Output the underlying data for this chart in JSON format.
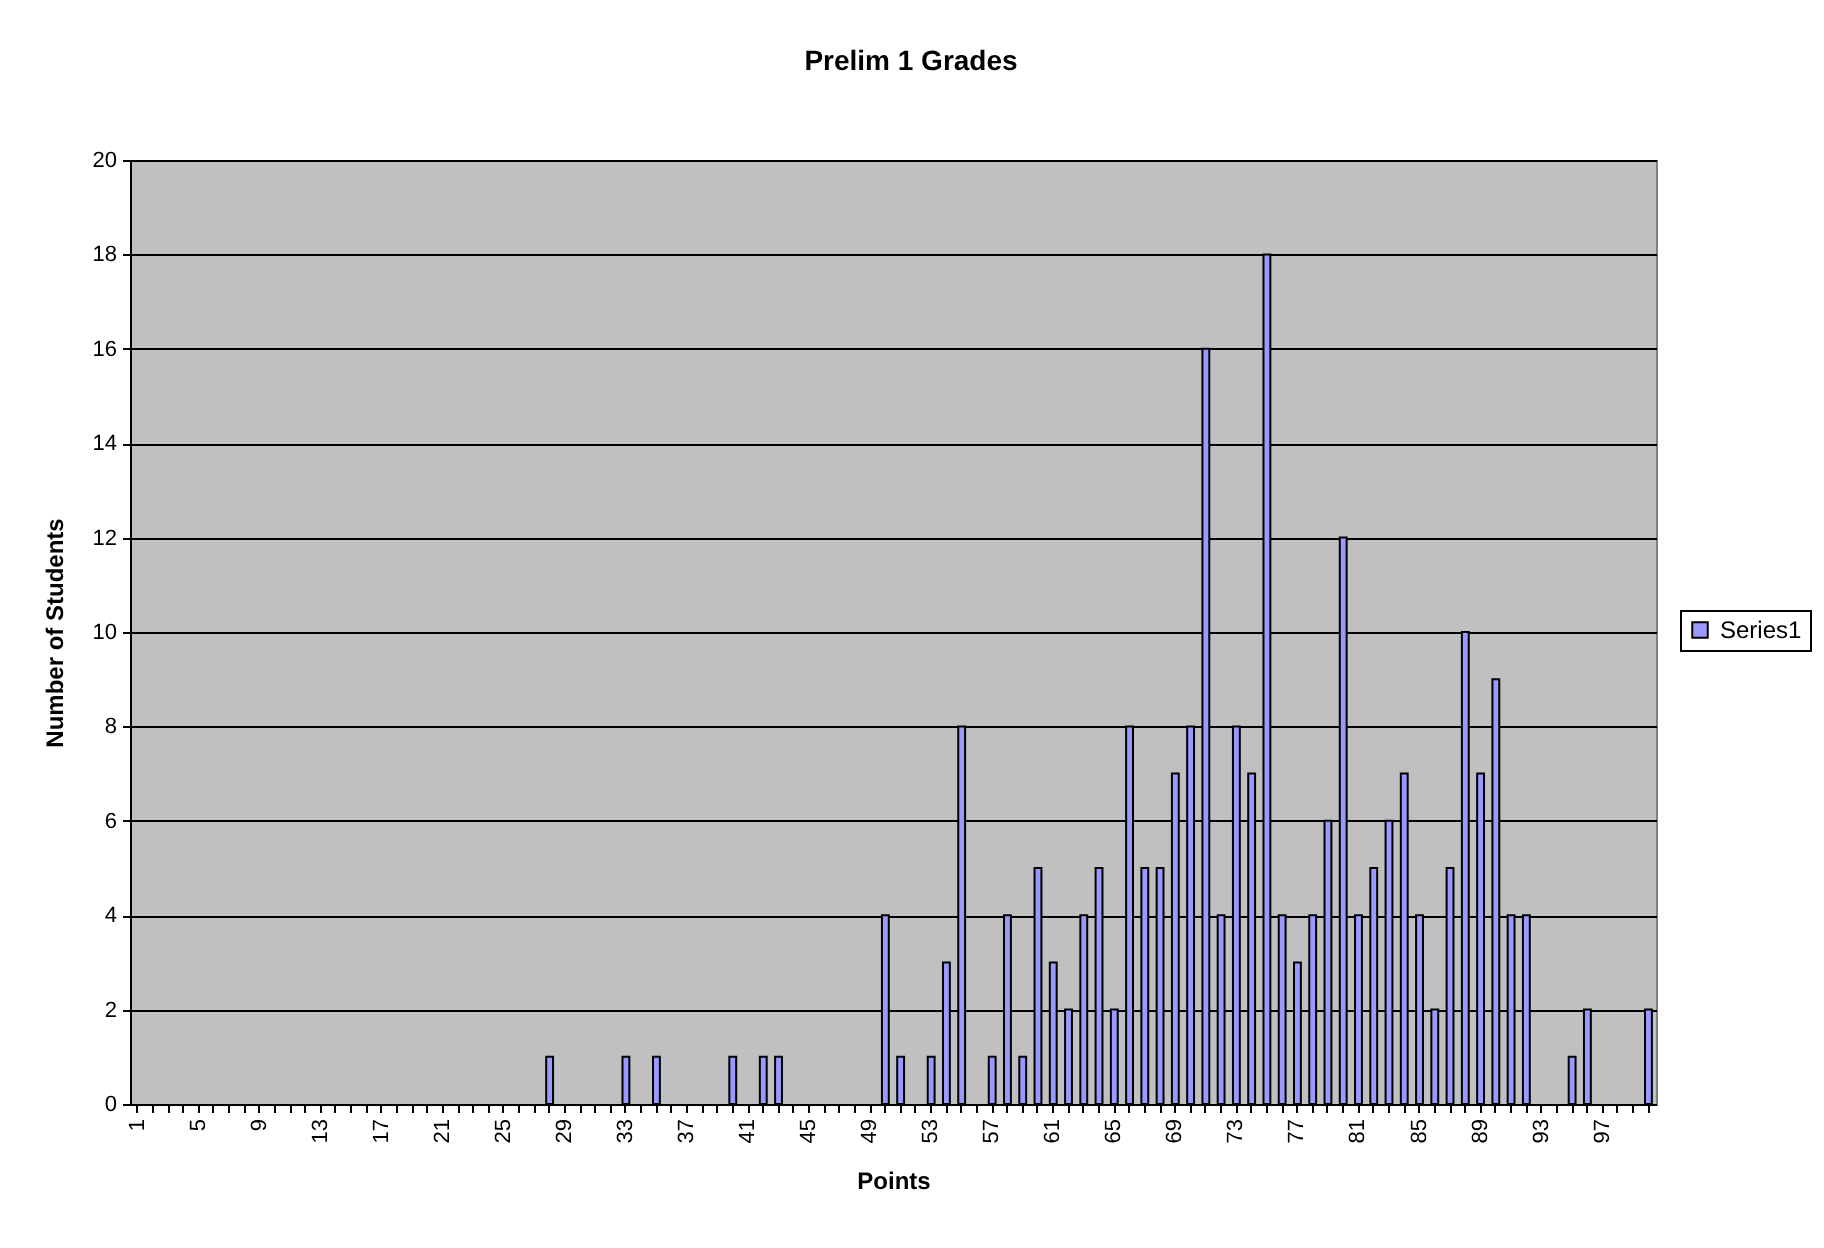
{
  "chart_data": {
    "type": "bar",
    "title": "Prelim 1 Grades",
    "xlabel": "Points",
    "ylabel": "Number of Students",
    "categories": [
      "1",
      null,
      null,
      null,
      "5",
      null,
      null,
      null,
      "9",
      null,
      null,
      null,
      "13",
      null,
      null,
      null,
      "17",
      null,
      null,
      null,
      "21",
      null,
      null,
      null,
      "25",
      null,
      null,
      null,
      "29",
      null,
      null,
      null,
      "33",
      null,
      null,
      null,
      "37",
      null,
      null,
      null,
      "41",
      null,
      null,
      null,
      "45",
      null,
      null,
      null,
      "49",
      null,
      null,
      null,
      "53",
      null,
      null,
      null,
      "57",
      null,
      null,
      null,
      "61",
      null,
      null,
      null,
      "65",
      null,
      null,
      null,
      "69",
      null,
      null,
      null,
      "73",
      null,
      null,
      null,
      "77",
      null,
      null,
      null,
      "81",
      null,
      null,
      null,
      "85",
      null,
      null,
      null,
      "89",
      null,
      null,
      null,
      "93",
      null,
      null,
      null,
      "97",
      null,
      null,
      null
    ],
    "series": [
      {
        "name": "Series1",
        "color": "#9999ff",
        "values": [
          null,
          null,
          null,
          null,
          null,
          null,
          null,
          null,
          null,
          null,
          null,
          null,
          null,
          null,
          null,
          null,
          null,
          null,
          null,
          null,
          null,
          null,
          null,
          null,
          null,
          null,
          null,
          1,
          null,
          null,
          null,
          null,
          1,
          null,
          1,
          null,
          null,
          null,
          null,
          1,
          null,
          1,
          1,
          null,
          null,
          null,
          null,
          null,
          null,
          4,
          1,
          null,
          1,
          3,
          8,
          null,
          1,
          4,
          1,
          5,
          3,
          2,
          4,
          5,
          2,
          8,
          5,
          5,
          7,
          8,
          16,
          4,
          8,
          7,
          18,
          4,
          3,
          4,
          6,
          12,
          4,
          5,
          6,
          7,
          4,
          2,
          5,
          10,
          7,
          9,
          4,
          4,
          null,
          null,
          1,
          2,
          null,
          null,
          null,
          2
        ]
      }
    ],
    "ylim": [
      0,
      20
    ],
    "yticks": [
      0,
      2,
      4,
      6,
      8,
      10,
      12,
      14,
      16,
      18,
      20
    ],
    "grid": "y",
    "legend": "right"
  }
}
